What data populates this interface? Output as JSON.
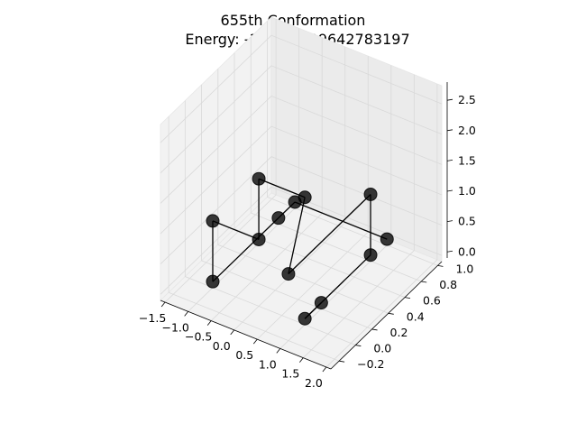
{
  "chart_data": {
    "type": "scatter3d",
    "title_line1": "655th Conformation",
    "title_line2": "Energy: -17.695599642783197",
    "xlabel": "",
    "ylabel": "",
    "zlabel": "",
    "xlim": [
      -1.6,
      2.1
    ],
    "ylim": [
      -0.3,
      1.05
    ],
    "zlim": [
      -0.1,
      2.8
    ],
    "x_ticks": [
      "−1.5",
      "−1.0",
      "−0.5",
      "0.0",
      "0.5",
      "1.0",
      "1.5",
      "2.0"
    ],
    "y_ticks": [
      "−0.2",
      "0.0",
      "0.2",
      "0.4",
      "0.6",
      "0.8",
      "1.0"
    ],
    "z_ticks": [
      "0.0",
      "0.5",
      "1.0",
      "1.5",
      "2.0",
      "2.5"
    ],
    "grid": true,
    "marker_color": "#000000",
    "line_color": "#000000",
    "points": [
      {
        "x": 1.0,
        "y": 0.2,
        "z": 0.0
      },
      {
        "x": 1.0,
        "y": 0.0,
        "z": 0.0
      },
      {
        "x": 1.0,
        "y": 0.8,
        "z": 0.0
      },
      {
        "x": 1.0,
        "y": 0.8,
        "z": 1.0
      },
      {
        "x": 1.0,
        "y": -0.2,
        "z": 1.0
      },
      {
        "x": 1.0,
        "y": 0.0,
        "z": 2.0
      },
      {
        "x": 0.0,
        "y": 0.0,
        "z": 2.0
      },
      {
        "x": 0.0,
        "y": 0.0,
        "z": 1.0
      },
      {
        "x": -1.0,
        "y": 0.0,
        "z": 1.0
      },
      {
        "x": -1.0,
        "y": 0.0,
        "z": 0.0
      },
      {
        "x": -1.0,
        "y": 0.8,
        "z": 0.0
      },
      {
        "x": -1.0,
        "y": 1.0,
        "z": 0.0
      },
      {
        "x": 1.0,
        "y": 1.0,
        "z": 0.0
      }
    ]
  }
}
